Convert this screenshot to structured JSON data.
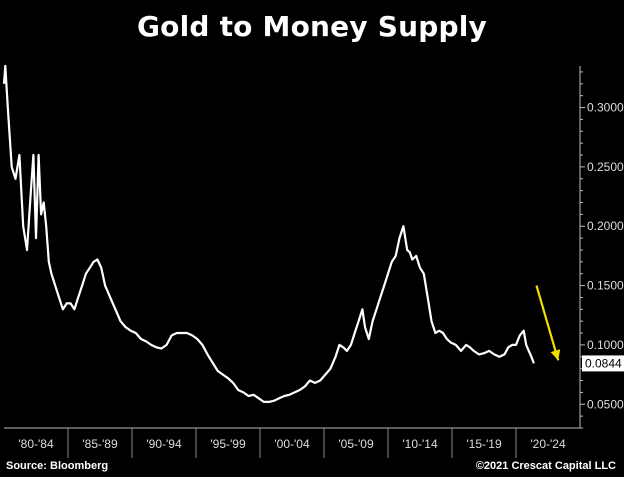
{
  "chart_data": {
    "type": "line",
    "title": "Gold to Money Supply",
    "xlabel": "",
    "ylabel": "",
    "x_categories": [
      "'80-'84",
      "'85-'89",
      "'90-'94",
      "'95-'99",
      "'00-'04",
      "'05-'09",
      "'10-'14",
      "'15-'19",
      "'20-'24"
    ],
    "x_range": [
      1980,
      2025
    ],
    "ylim": [
      0.03,
      0.335
    ],
    "y_ticks": [
      "0.0500",
      "0.1000",
      "0.1500",
      "0.2000",
      "0.2500",
      "0.3000"
    ],
    "last_value_label": "0.0844",
    "series": [
      {
        "name": "",
        "color": "#ffffff",
        "x": [
          1980.0,
          1980.1,
          1980.3,
          1980.6,
          1980.9,
          1981.2,
          1981.5,
          1981.8,
          1982.1,
          1982.3,
          1982.5,
          1982.7,
          1982.9,
          1983.1,
          1983.3,
          1983.5,
          1983.7,
          1984.0,
          1984.3,
          1984.6,
          1984.9,
          1985.2,
          1985.5,
          1985.8,
          1986.1,
          1986.4,
          1986.7,
          1987.0,
          1987.3,
          1987.6,
          1987.9,
          1988.3,
          1988.7,
          1989.1,
          1989.5,
          1989.9,
          1990.3,
          1990.7,
          1991.1,
          1991.5,
          1991.9,
          1992.3,
          1992.7,
          1993.1,
          1993.5,
          1993.9,
          1994.3,
          1994.7,
          1995.1,
          1995.5,
          1995.9,
          1996.3,
          1996.7,
          1997.1,
          1997.5,
          1997.9,
          1998.3,
          1998.7,
          1999.1,
          1999.5,
          1999.9,
          2000.3,
          2000.7,
          2001.1,
          2001.5,
          2001.9,
          2002.3,
          2002.7,
          2003.1,
          2003.5,
          2003.9,
          2004.3,
          2004.7,
          2005.1,
          2005.5,
          2005.9,
          2006.2,
          2006.5,
          2006.8,
          2007.1,
          2007.4,
          2007.7,
          2008.0,
          2008.2,
          2008.5,
          2008.8,
          2009.1,
          2009.4,
          2009.7,
          2010.0,
          2010.3,
          2010.6,
          2010.9,
          2011.2,
          2011.5,
          2011.7,
          2011.9,
          2012.2,
          2012.5,
          2012.8,
          2013.1,
          2013.4,
          2013.7,
          2014.0,
          2014.3,
          2014.6,
          2014.9,
          2015.3,
          2015.7,
          2016.1,
          2016.4,
          2016.7,
          2017.1,
          2017.5,
          2017.9,
          2018.3,
          2018.7,
          2019.1,
          2019.4,
          2019.7,
          2020.0,
          2020.3,
          2020.6,
          2020.8,
          2021.0,
          2021.2,
          2021.4
        ],
        "y": [
          0.32,
          0.335,
          0.3,
          0.25,
          0.24,
          0.26,
          0.2,
          0.18,
          0.23,
          0.26,
          0.19,
          0.26,
          0.21,
          0.22,
          0.2,
          0.17,
          0.16,
          0.15,
          0.14,
          0.13,
          0.135,
          0.135,
          0.13,
          0.14,
          0.15,
          0.16,
          0.165,
          0.17,
          0.172,
          0.165,
          0.15,
          0.14,
          0.13,
          0.12,
          0.115,
          0.112,
          0.11,
          0.105,
          0.103,
          0.1,
          0.098,
          0.097,
          0.1,
          0.108,
          0.11,
          0.11,
          0.11,
          0.108,
          0.105,
          0.1,
          0.092,
          0.085,
          0.078,
          0.075,
          0.072,
          0.068,
          0.062,
          0.06,
          0.057,
          0.058,
          0.055,
          0.052,
          0.052,
          0.053,
          0.055,
          0.057,
          0.058,
          0.06,
          0.062,
          0.065,
          0.07,
          0.068,
          0.07,
          0.075,
          0.08,
          0.09,
          0.1,
          0.098,
          0.095,
          0.1,
          0.11,
          0.12,
          0.13,
          0.115,
          0.105,
          0.12,
          0.13,
          0.14,
          0.15,
          0.16,
          0.17,
          0.175,
          0.19,
          0.2,
          0.18,
          0.178,
          0.172,
          0.175,
          0.165,
          0.16,
          0.14,
          0.12,
          0.11,
          0.112,
          0.11,
          0.105,
          0.102,
          0.1,
          0.095,
          0.1,
          0.098,
          0.095,
          0.092,
          0.093,
          0.095,
          0.092,
          0.09,
          0.092,
          0.098,
          0.1,
          0.1,
          0.108,
          0.112,
          0.1,
          0.095,
          0.09,
          0.0844
        ]
      }
    ],
    "annotations": [
      {
        "type": "arrow",
        "color": "#f0e000",
        "from": {
          "x": 2021.6,
          "y": 0.15
        },
        "to": {
          "x": 2023.3,
          "y": 0.087
        }
      }
    ]
  },
  "footer": {
    "source": "Source: Bloomberg",
    "copyright": "©2021 Crescat Capital LLC"
  }
}
